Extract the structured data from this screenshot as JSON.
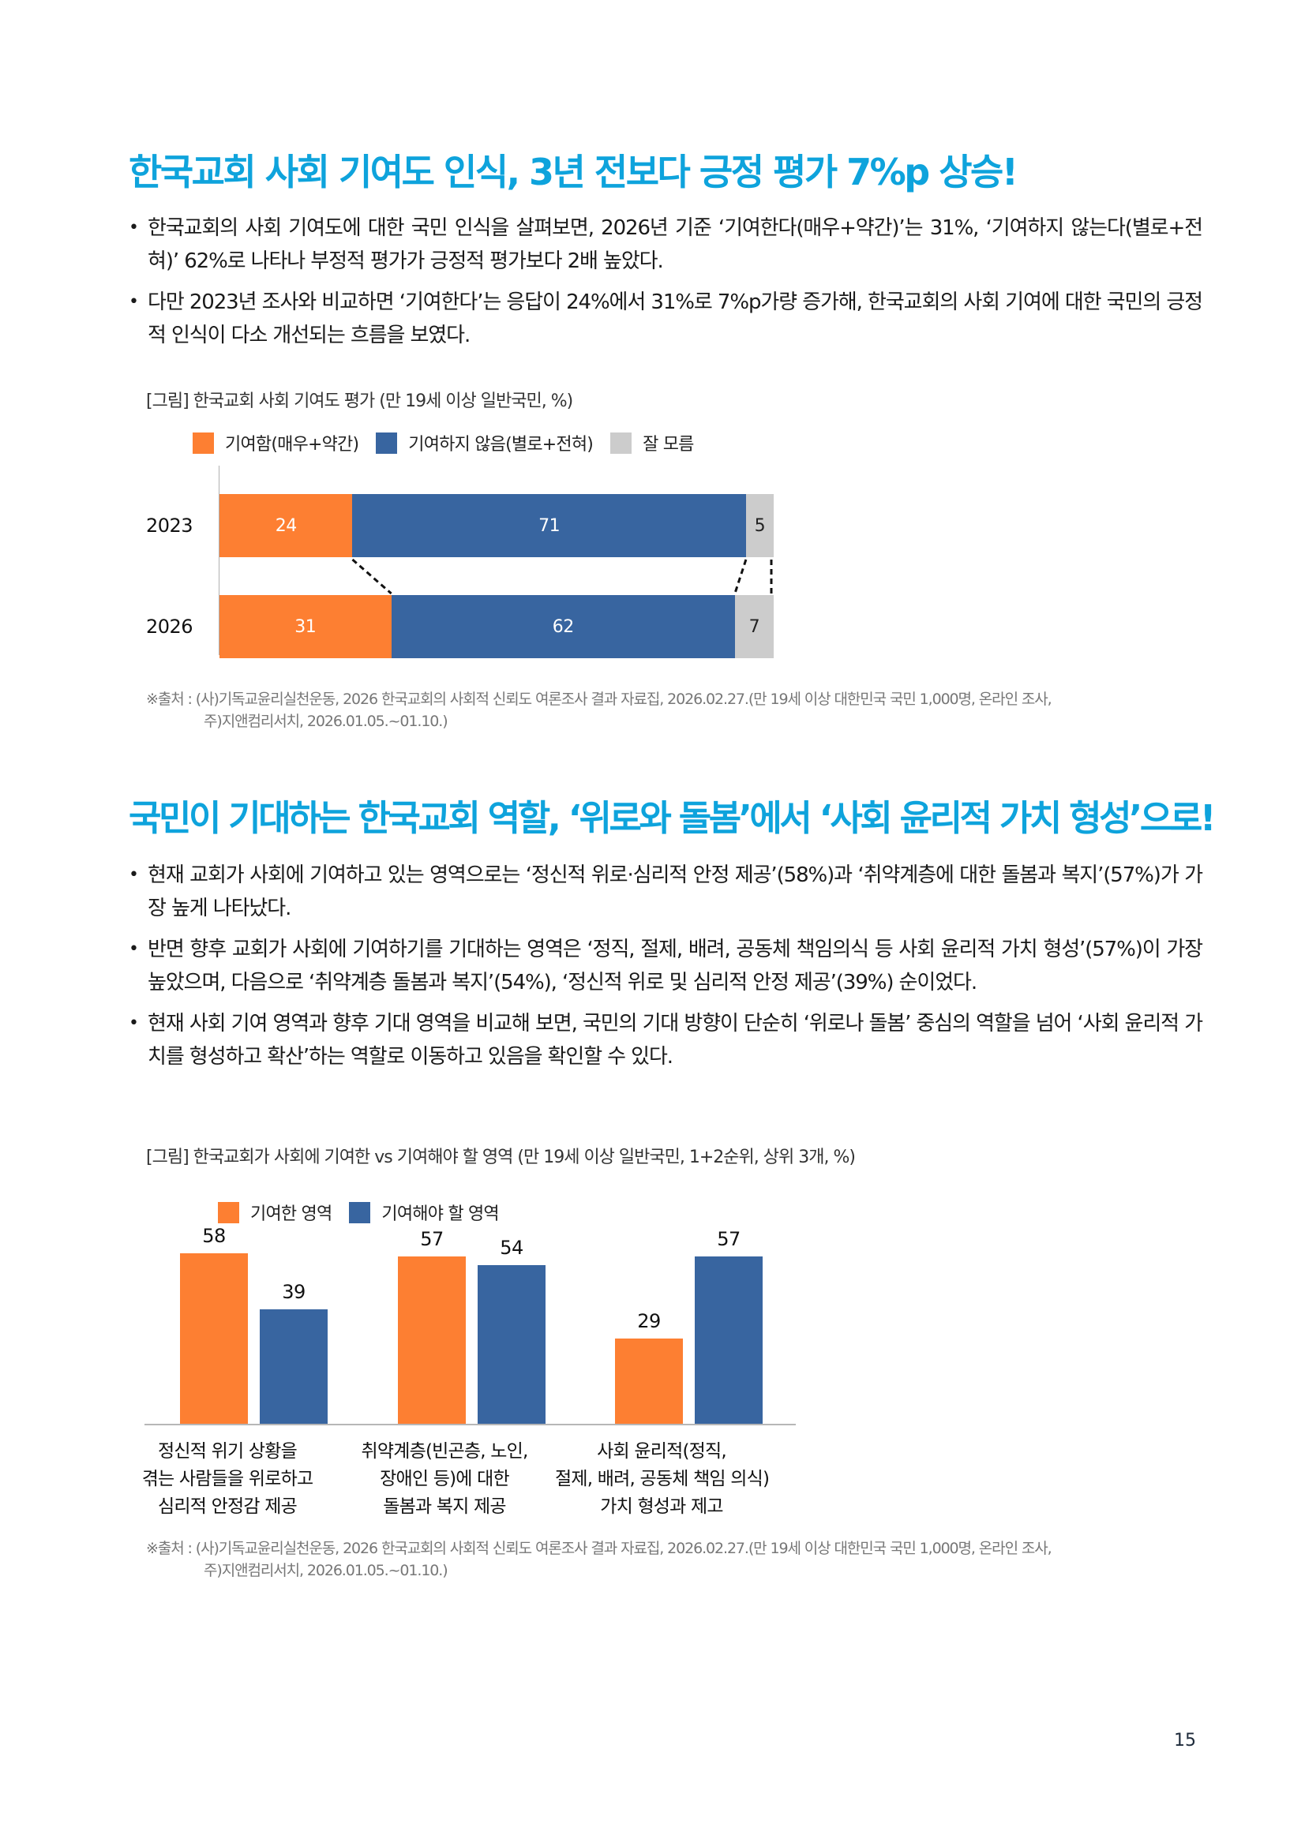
{
  "section1": {
    "title": "한국교회 사회 기여도 인식, 3년 전보다 긍정 평가 7%p 상승!",
    "bullets": [
      "한국교회의 사회 기여도에 대한 국민 인식을 살펴보면, 2026년 기준 ‘기여한다(매우+약간)’는 31%, ‘기여하지 않는다(별로+전혀)’ 62%로 나타나 부정적 평가가 긍정적 평가보다 2배 높았다.",
      "다만 2023년 조사와 비교하면 ‘기여한다’는 응답이 24%에서 31%로 7%p가량 증가해, 한국교회의 사회 기여에 대한 국민의 긍정적 인식이 다소 개선되는 흐름을 보였다."
    ],
    "figure_caption": "[그림] 한국교회 사회 기여도 평가 (만 19세 이상 일반국민, %)",
    "legend": [
      {
        "label": "기여함(매우+약간)",
        "color": "#fd7f32"
      },
      {
        "label": "기여하지 않음(별로+전혀)",
        "color": "#3865a0"
      },
      {
        "label": "잘 모름",
        "color": "#cccccc"
      }
    ],
    "source_line1": "※출처 : (사)기독교윤리실천운동, 2026 한국교회의 사회적 신뢰도 여론조사 결과 자료집, 2026.02.27.(만 19세 이상 대한민국 국민 1,000명, 온라인 조사,",
    "source_line2": "주)지앤컴리서치, 2026.01.05.~01.10.)"
  },
  "section2": {
    "title": "국민이 기대하는 한국교회 역할, ‘위로와 돌봄’에서 ‘사회 윤리적 가치 형성’으로!",
    "bullets": [
      "현재 교회가 사회에 기여하고 있는 영역으로는 ‘정신적 위로·심리적 안정 제공’(58%)과 ‘취약계층에 대한 돌봄과 복지’(57%)가 가장 높게 나타났다.",
      "반면 향후 교회가 사회에 기여하기를 기대하는 영역은 ‘정직, 절제, 배려, 공동체 책임의식 등 사회 윤리적 가치 형성’(57%)이 가장 높았으며, 다음으로 ‘취약계층 돌봄과 복지’(54%), ‘정신적 위로 및 심리적 안정 제공’(39%) 순이었다.",
      "현재 사회 기여 영역과 향후 기대 영역을 비교해 보면, 국민의 기대 방향이 단순히 ‘위로나 돌봄’ 중심의 역할을 넘어 ‘사회 윤리적 가치를 형성하고 확산’하는 역할로 이동하고 있음을 확인할 수 있다."
    ],
    "figure_caption": "[그림] 한국교회가 사회에 기여한 vs 기여해야 할 영역 (만 19세 이상 일반국민, 1+2순위, 상위 3개, %)",
    "legend": [
      {
        "label": "기여한 영역",
        "color": "#fd7f32"
      },
      {
        "label": "기여해야 할 영역",
        "color": "#3865a0"
      }
    ],
    "categories": [
      {
        "line1": "정신적 위기 상황을",
        "line2": "겪는 사람들을 위로하고",
        "line3": "심리적 안정감 제공"
      },
      {
        "line1": "취약계층(빈곤층, 노인,",
        "line2": "장애인 등)에 대한",
        "line3": "돌봄과 복지 제공"
      },
      {
        "line1": "사회 윤리적(정직,",
        "line2": "절제, 배려, 공동체 책임 의식)",
        "line3": "가치 형성과 제고"
      }
    ],
    "source_line1": "※출처 : (사)기독교윤리실천운동, 2026 한국교회의 사회적 신뢰도 여론조사 결과 자료집, 2026.02.27.(만 19세 이상 대한민국 국민 1,000명, 온라인 조사,",
    "source_line2": "주)지앤컴리서치, 2026.01.05.~01.10.)"
  },
  "page_number": "15",
  "chart_data": [
    {
      "type": "bar",
      "orientation": "horizontal",
      "stacked": true,
      "title": "[그림] 한국교회 사회 기여도 평가 (만 19세 이상 일반국민, %)",
      "categories": [
        "2023",
        "2026"
      ],
      "series": [
        {
          "name": "기여함(매우+약간)",
          "color": "#fd7f32",
          "values": [
            24,
            31
          ]
        },
        {
          "name": "기여하지 않음(별로+전혀)",
          "color": "#3865a0",
          "values": [
            71,
            62
          ]
        },
        {
          "name": "잘 모름",
          "color": "#cccccc",
          "values": [
            5,
            7
          ]
        }
      ],
      "xlim": [
        0,
        100
      ],
      "legend_position": "top",
      "grid": false,
      "annotations": [
        "dashed connector lines between segment boundaries of 2023 and 2026"
      ]
    },
    {
      "type": "bar",
      "orientation": "vertical",
      "stacked": false,
      "title": "[그림] 한국교회가 사회에 기여한 vs 기여해야 할 영역 (만 19세 이상 일반국민, 1+2순위, 상위 3개, %)",
      "categories": [
        "정신적 위기 상황을 겪는 사람들을 위로하고 심리적 안정감 제공",
        "취약계층(빈곤층, 노인, 장애인 등)에 대한 돌봄과 복지 제공",
        "사회 윤리적(정직, 절제, 배려, 공동체 책임 의식) 가치 형성과 제고"
      ],
      "series": [
        {
          "name": "기여한 영역",
          "color": "#fd7f32",
          "values": [
            58,
            57,
            29
          ]
        },
        {
          "name": "기여해야 할 영역",
          "color": "#3865a0",
          "values": [
            39,
            54,
            57
          ]
        }
      ],
      "ylim": [
        0,
        60
      ],
      "legend_position": "top",
      "grid": false
    }
  ]
}
